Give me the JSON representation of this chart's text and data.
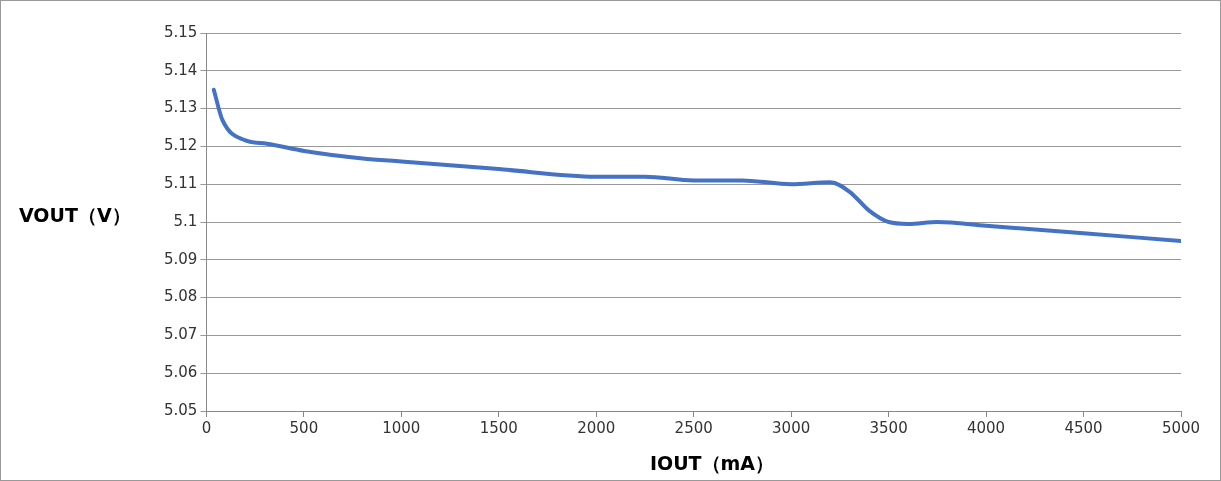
{
  "chart_data": {
    "type": "line",
    "xlabel": "IOUT（mA）",
    "ylabel": "VOUT（V）",
    "x": [
      38,
      82,
      200,
      311,
      502,
      802,
      1000,
      1500,
      2000,
      2250,
      2500,
      2750,
      3000,
      3200,
      3300,
      3400,
      3500,
      3600,
      3750,
      4000,
      4500,
      5000
    ],
    "series": [
      {
        "color": "#4472c4",
        "values": [
          5.135,
          5.127,
          5.1216,
          5.1207,
          5.1188,
          5.1168,
          5.116,
          5.114,
          5.112,
          5.112,
          5.111,
          5.111,
          5.11,
          5.1105,
          5.108,
          5.103,
          5.1,
          5.0995,
          5.1,
          5.099,
          5.097,
          5.095
        ]
      }
    ],
    "xlim": [
      0,
      5000
    ],
    "xticks": [
      0,
      500,
      1000,
      1500,
      2000,
      2500,
      3000,
      3500,
      4000,
      4500,
      5000
    ],
    "ylim": [
      5.05,
      5.15
    ],
    "yticks": [
      {
        "value": 5.05,
        "label": "5.05"
      },
      {
        "value": 5.06,
        "label": "5.06"
      },
      {
        "value": 5.07,
        "label": "5.07"
      },
      {
        "value": 5.08,
        "label": "5.08"
      },
      {
        "value": 5.09,
        "label": "5.09"
      },
      {
        "value": 5.1,
        "label": "5.1"
      },
      {
        "value": 5.11,
        "label": "5.11"
      },
      {
        "value": 5.12,
        "label": "5.12"
      },
      {
        "value": 5.13,
        "label": "5.13"
      },
      {
        "value": 5.14,
        "label": "5.14"
      },
      {
        "value": 5.15,
        "label": "5.15"
      }
    ],
    "grid": "y",
    "marker": "none",
    "line_style": "solid",
    "legend": false
  }
}
